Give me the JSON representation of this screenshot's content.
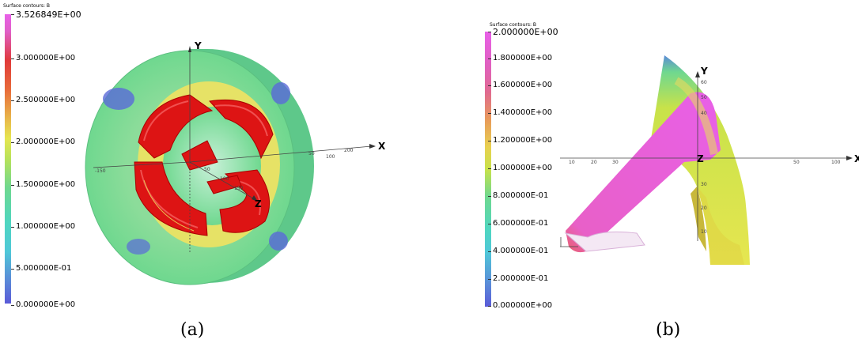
{
  "panels": [
    {
      "id": "a",
      "caption": "(a)",
      "legend_title": "Surface contours: B",
      "colorbar_labels": [
        "3.526849E+00",
        "3.000000E+00",
        "2.500000E+00",
        "2.000000E+00",
        "1.500000E+00",
        "1.000000E+00",
        "5.000000E-01",
        "0.000000E+00"
      ],
      "axes": {
        "x": "X",
        "y": "Y",
        "z": "Z"
      },
      "axis_ticks": [
        "-150",
        "50",
        "100",
        "200",
        "50",
        "100",
        "150"
      ]
    },
    {
      "id": "b",
      "caption": "(b)",
      "legend_title": "Surface contours: B",
      "colorbar_labels": [
        "2.000000E+00",
        "1.800000E+00",
        "1.600000E+00",
        "1.400000E+00",
        "1.200000E+00",
        "1.000000E+00",
        "8.000000E-01",
        "6.000000E-01",
        "4.000000E-01",
        "2.000000E-01",
        "0.000000E+00"
      ],
      "axes": {
        "x": "X",
        "y": "Y",
        "z": "Z"
      },
      "axis_ticks": [
        "10",
        "20",
        "30",
        "50",
        "100",
        "60",
        "50",
        "40",
        "30",
        "20",
        "10"
      ]
    }
  ],
  "colors": {
    "magenta": "#e75fe5",
    "red": "#e01414",
    "yellow": "#e8e650",
    "green": "#6fd88f",
    "cyan": "#4fd6d0",
    "blue": "#5a62d8"
  }
}
